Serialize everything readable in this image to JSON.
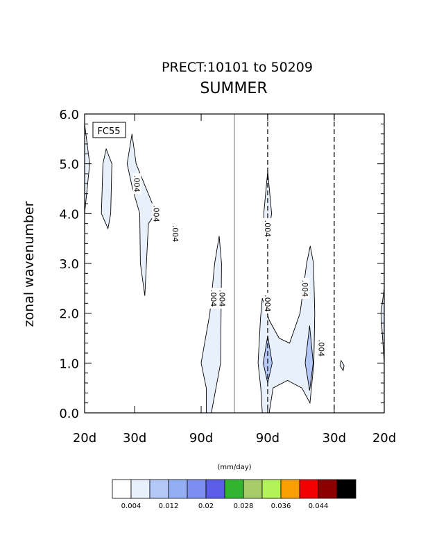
{
  "chart_data": {
    "type": "contour",
    "title": "PRECT:10101 to 50209",
    "subtitle": "SUMMER",
    "panel_label": "FC55",
    "xlabel": "",
    "ylabel": "zonal wavenumber",
    "x_tick_labels": [
      "20d",
      "30d",
      "90d",
      "90d",
      "30d",
      "20d"
    ],
    "y_ticks": [
      "0.0",
      "1.0",
      "2.0",
      "3.0",
      "4.0",
      "5.0",
      "6.0"
    ],
    "ylim": [
      0,
      6
    ],
    "xlim": [
      -0.05,
      0.05
    ],
    "x_tick_frequencies": [
      -0.05,
      -0.0333,
      -0.0111,
      0.0111,
      0.0333,
      0.05
    ],
    "contour_label": ".004",
    "contour_labels": [
      {
        "x": -0.0325,
        "y": 4.6,
        "text": ".004"
      },
      {
        "x": -0.0261,
        "y": 4.0,
        "text": ".004"
      },
      {
        "x": -0.0197,
        "y": 3.6,
        "text": ".004"
      },
      {
        "x": -0.0069,
        "y": 2.3,
        "text": ".004"
      },
      {
        "x": -0.0041,
        "y": 2.3,
        "text": ".004"
      },
      {
        "x": 0.0111,
        "y": 3.7,
        "text": ".004"
      },
      {
        "x": 0.0111,
        "y": 2.2,
        "text": ".004"
      },
      {
        "x": 0.0236,
        "y": 2.5,
        "text": ".004"
      },
      {
        "x": 0.0291,
        "y": 1.3,
        "text": ".004"
      }
    ],
    "regions": [
      {
        "level": 0.004,
        "points": [
          [
            -0.05,
            5.8
          ],
          [
            -0.0483,
            5.0
          ],
          [
            -0.05,
            4.0
          ]
        ]
      },
      {
        "level": 0.004,
        "points": [
          [
            -0.0428,
            5.3
          ],
          [
            -0.0409,
            5.0
          ],
          [
            -0.0413,
            4.0
          ],
          [
            -0.0422,
            3.7
          ],
          [
            -0.0444,
            4.0
          ],
          [
            -0.0439,
            5.0
          ]
        ]
      },
      {
        "level": 0.004,
        "points": [
          [
            -0.0342,
            5.6
          ],
          [
            -0.0328,
            5.0
          ],
          [
            -0.0274,
            4.2
          ],
          [
            -0.0264,
            4.0
          ],
          [
            -0.0287,
            3.8
          ],
          [
            -0.0299,
            2.35
          ],
          [
            -0.0314,
            3.0
          ],
          [
            -0.0316,
            4.0
          ],
          [
            -0.034,
            4.5
          ],
          [
            -0.0358,
            5.0
          ]
        ]
      },
      {
        "level": 0.004,
        "points": [
          [
            -0.0051,
            3.55
          ],
          [
            -0.0043,
            3.0
          ],
          [
            -0.0046,
            1.0
          ],
          [
            -0.0077,
            0.0
          ],
          [
            -0.0094,
            0.0
          ],
          [
            -0.0094,
            0.5
          ],
          [
            -0.0111,
            1.0
          ],
          [
            -0.0082,
            2.0
          ],
          [
            -0.0066,
            3.0
          ]
        ]
      },
      {
        "level": 0.004,
        "points": [
          [
            0.0111,
            4.85
          ],
          [
            0.0124,
            4.0
          ],
          [
            0.0113,
            3.55
          ],
          [
            0.0102,
            3.5
          ],
          [
            0.0098,
            4.0
          ]
        ]
      },
      {
        "level": 0.004,
        "points": [
          [
            0.0093,
            2.3
          ],
          [
            0.0117,
            1.85
          ],
          [
            0.0149,
            1.5
          ],
          [
            0.0184,
            1.4
          ],
          [
            0.0219,
            2.0
          ],
          [
            0.0241,
            3.0
          ],
          [
            0.0253,
            3.35
          ],
          [
            0.0264,
            3.0
          ],
          [
            0.0268,
            2.0
          ],
          [
            0.0265,
            1.0
          ],
          [
            0.0252,
            0.2
          ],
          [
            0.0225,
            0.5
          ],
          [
            0.0177,
            0.65
          ],
          [
            0.0129,
            0.5
          ],
          [
            0.0116,
            0.0
          ],
          [
            0.0093,
            0.0
          ],
          [
            0.0088,
            0.5
          ],
          [
            0.0079,
            1.0
          ],
          [
            0.0087,
            1.9
          ]
        ]
      },
      {
        "level": 0.004,
        "points": [
          [
            0.05,
            2.5
          ],
          [
            0.0489,
            2.0
          ],
          [
            0.05,
            1.0
          ]
        ]
      },
      {
        "level": 0.004,
        "points": [
          [
            0.0356,
            1.05
          ],
          [
            0.0366,
            0.95
          ],
          [
            0.0363,
            0.85
          ],
          [
            0.0352,
            0.95
          ]
        ]
      },
      {
        "level": 0.008,
        "points": [
          [
            0.0111,
            1.55
          ],
          [
            0.0126,
            1.0
          ],
          [
            0.0111,
            0.6
          ],
          [
            0.0096,
            1.0
          ]
        ]
      },
      {
        "level": 0.008,
        "points": [
          [
            0.0251,
            1.75
          ],
          [
            0.0263,
            1.0
          ],
          [
            0.0251,
            0.45
          ],
          [
            0.0236,
            1.0
          ]
        ]
      }
    ],
    "dashed_verticals_x": [
      0.0111,
      0.0333
    ],
    "solid_vertical_x": 0,
    "legend_units": "(mm/day)",
    "legend_colors": [
      "#ffffff",
      "#e8f1fb",
      "#b4c8f8",
      "#94aef3",
      "#7c8ef0",
      "#5a5ee8",
      "#32b632",
      "#a6cc6a",
      "#b4f25a",
      "#f8a000",
      "#f00000",
      "#8c0000",
      "#000000"
    ],
    "legend_labels": [
      "0.004",
      "0.012",
      "0.02",
      "0.028",
      "0.036",
      "0.044"
    ],
    "legend_label_positions": [
      0,
      2,
      4,
      6,
      8,
      10
    ]
  }
}
